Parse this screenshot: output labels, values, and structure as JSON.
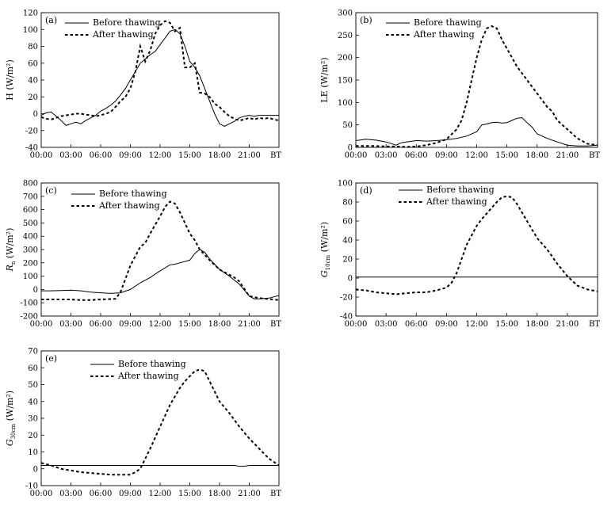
{
  "chart_data": [
    {
      "type": "line",
      "panel": "(a)",
      "ylabel": "H (W/m²)",
      "ylabel_main": "H",
      "ylabel_sub": "",
      "ylabel_unit": "(W/m²)",
      "ylim": [
        -40,
        120
      ],
      "yticks": [
        -40,
        -20,
        0,
        20,
        40,
        60,
        80,
        100,
        120
      ],
      "xlim": [
        0,
        24
      ],
      "xticks": [
        0,
        3,
        6,
        9,
        12,
        15,
        18,
        21
      ],
      "xtick_labels": [
        "00:00",
        "03:00",
        "06:00",
        "09:00",
        "12:00",
        "15:00",
        "18:00",
        "21:00"
      ],
      "x_unit_label": "BT",
      "legend": "top-left",
      "series": [
        {
          "name": "Before thawing",
          "style": "solid",
          "x": [
            0,
            0.5,
            1,
            1.5,
            2,
            2.5,
            3,
            3.5,
            4,
            4.5,
            5,
            5.5,
            6,
            6.5,
            7,
            7.5,
            8,
            8.5,
            9,
            9.5,
            10,
            10.5,
            11,
            11.5,
            12,
            12.5,
            13,
            13.5,
            14,
            14.5,
            15,
            15.5,
            16,
            16.5,
            17,
            17.5,
            18,
            18.5,
            19,
            19.5,
            20,
            20.5,
            21,
            21.5,
            22,
            22.5,
            23,
            23.5,
            24
          ],
          "values": [
            -2,
            1,
            2,
            -3,
            -8,
            -14,
            -12,
            -10,
            -12,
            -8,
            -5,
            -2,
            3,
            6,
            10,
            15,
            22,
            30,
            40,
            50,
            60,
            65,
            70,
            74,
            82,
            90,
            98,
            100,
            95,
            80,
            62,
            55,
            45,
            30,
            15,
            0,
            -12,
            -15,
            -12,
            -9,
            -5,
            -3,
            -2,
            -3,
            -2,
            -2,
            -2,
            -2,
            -2
          ]
        },
        {
          "name": "After thawing",
          "style": "dashed",
          "x": [
            0,
            0.5,
            1,
            1.5,
            2,
            2.5,
            3,
            3.5,
            4,
            4.5,
            5,
            5.5,
            6,
            6.5,
            7,
            7.5,
            8,
            8.5,
            9,
            9.5,
            10,
            10.5,
            11,
            11.5,
            12,
            12.5,
            13,
            13.5,
            14,
            14.5,
            15,
            15.5,
            16,
            16.5,
            17,
            17.5,
            18,
            18.5,
            19,
            19.5,
            20,
            20.5,
            21,
            21.5,
            22,
            22.5,
            23,
            23.5,
            24
          ],
          "values": [
            -4,
            -6,
            -7,
            -5,
            -3,
            -2,
            -1,
            0,
            0,
            -1,
            -2,
            -3,
            -2,
            0,
            2,
            8,
            15,
            20,
            30,
            50,
            80,
            62,
            75,
            95,
            105,
            110,
            108,
            98,
            102,
            55,
            55,
            60,
            25,
            24,
            20,
            12,
            8,
            2,
            -3,
            -6,
            -8,
            -7,
            -5,
            -7,
            -5,
            -6,
            -5,
            -7,
            -8
          ]
        }
      ]
    },
    {
      "type": "line",
      "panel": "(b)",
      "ylabel": "LE (W/m²)",
      "ylabel_main": "LE",
      "ylabel_sub": "",
      "ylabel_unit": "(W/m²)",
      "ylim": [
        0,
        300
      ],
      "yticks": [
        0,
        50,
        100,
        150,
        200,
        250,
        300
      ],
      "xlim": [
        0,
        24
      ],
      "xticks": [
        0,
        3,
        6,
        9,
        12,
        15,
        18,
        21
      ],
      "xtick_labels": [
        "00:00",
        "03:00",
        "06:00",
        "09:00",
        "12:00",
        "15:00",
        "18:00",
        "21:00"
      ],
      "x_unit_label": "BT",
      "legend": "top-left",
      "series": [
        {
          "name": "Before thawing",
          "style": "solid",
          "x": [
            0,
            1,
            2,
            3,
            4,
            4.5,
            5,
            6,
            7,
            8,
            9,
            10,
            11,
            12,
            12.5,
            13,
            13.5,
            14,
            14.5,
            15,
            15.5,
            16,
            16.5,
            17,
            17.5,
            18,
            18.5,
            19,
            20,
            21,
            22,
            23,
            24
          ],
          "values": [
            15,
            18,
            16,
            12,
            5,
            10,
            12,
            15,
            14,
            15,
            17,
            20,
            25,
            35,
            50,
            52,
            55,
            56,
            54,
            55,
            60,
            65,
            66,
            55,
            45,
            30,
            25,
            20,
            12,
            5,
            3,
            3,
            5
          ]
        },
        {
          "name": "After thawing",
          "style": "dashed",
          "x": [
            0,
            1,
            2,
            3,
            4,
            5,
            6,
            7,
            8,
            9,
            10,
            10.5,
            11,
            11.5,
            12,
            12.5,
            13,
            13.5,
            14,
            14.5,
            15,
            15.5,
            16,
            16.5,
            17,
            17.5,
            18,
            18.5,
            19,
            19.5,
            20,
            21,
            22,
            23,
            24
          ],
          "values": [
            3,
            3,
            3,
            2,
            2,
            1,
            2,
            5,
            10,
            18,
            40,
            60,
            100,
            150,
            200,
            240,
            265,
            270,
            265,
            240,
            220,
            200,
            180,
            165,
            150,
            135,
            120,
            105,
            90,
            80,
            60,
            40,
            20,
            8,
            5
          ]
        }
      ]
    },
    {
      "type": "line",
      "panel": "(c)",
      "ylabel": "Rn (W/m²)",
      "ylabel_main": "R",
      "ylabel_sub": "n",
      "ylabel_unit": "(W/m²)",
      "ylim": [
        -200,
        800
      ],
      "yticks": [
        -200,
        -100,
        0,
        100,
        200,
        300,
        400,
        500,
        600,
        700,
        800
      ],
      "xlim": [
        0,
        24
      ],
      "xticks": [
        0,
        3,
        6,
        9,
        12,
        15,
        18,
        21
      ],
      "xtick_labels": [
        "00:00",
        "03:00",
        "06:00",
        "09:00",
        "12:00",
        "15:00",
        "18:00",
        "21:00"
      ],
      "x_unit_label": "BT",
      "legend": "top-left",
      "series": [
        {
          "name": "Before thawing",
          "style": "solid",
          "x": [
            0,
            1,
            2,
            3,
            4,
            5,
            6,
            7,
            8,
            9,
            10,
            11,
            12,
            13,
            13.5,
            14,
            15,
            15.5,
            16,
            16.5,
            17,
            17.5,
            18,
            19,
            20,
            21,
            21.5,
            22,
            23,
            24
          ],
          "values": [
            -10,
            -10,
            -8,
            -5,
            -10,
            -20,
            -25,
            -30,
            -25,
            0,
            50,
            90,
            140,
            185,
            190,
            200,
            220,
            270,
            300,
            280,
            230,
            190,
            150,
            100,
            40,
            -50,
            -70,
            -70,
            -65,
            -45
          ]
        },
        {
          "name": "After thawing",
          "style": "dashed",
          "x": [
            0,
            1,
            2,
            3,
            4,
            5,
            6,
            7,
            7.5,
            8,
            8.5,
            9,
            10,
            10.5,
            11,
            12,
            12.5,
            13,
            13.5,
            14,
            14.5,
            15,
            15.5,
            16,
            17,
            18,
            19,
            19.5,
            20,
            21,
            22,
            23,
            24
          ],
          "values": [
            -75,
            -75,
            -75,
            -75,
            -80,
            -80,
            -75,
            -72,
            -70,
            -20,
            80,
            180,
            320,
            350,
            420,
            550,
            620,
            660,
            645,
            580,
            500,
            420,
            370,
            300,
            220,
            150,
            110,
            90,
            60,
            -50,
            -65,
            -72,
            -80
          ]
        }
      ]
    },
    {
      "type": "line",
      "panel": "(d)",
      "ylabel": "G10cm (W/m²)",
      "ylabel_main": "G",
      "ylabel_sub": "10cm",
      "ylabel_unit": "(W/m²)",
      "ylim": [
        -40,
        100
      ],
      "yticks": [
        -40,
        -20,
        0,
        20,
        40,
        60,
        80,
        100
      ],
      "xlim": [
        0,
        24
      ],
      "xticks": [
        0,
        3,
        6,
        9,
        12,
        15,
        18,
        21
      ],
      "xtick_labels": [
        "00:00",
        "03:00",
        "06:00",
        "09:00",
        "12:00",
        "15:00",
        "18:00",
        "21:00"
      ],
      "x_unit_label": "BT",
      "legend": "top-left",
      "series": [
        {
          "name": "Before thawing",
          "style": "solid",
          "x": [
            0,
            24
          ],
          "values": [
            1,
            1
          ]
        },
        {
          "name": "After thawing",
          "style": "dashed",
          "x": [
            0,
            1,
            2,
            3,
            4,
            5,
            6,
            7,
            8,
            9,
            9.5,
            10,
            11,
            12,
            12.5,
            13,
            14,
            14.5,
            15,
            15.5,
            16,
            17,
            18,
            19,
            20,
            21,
            22,
            23,
            24
          ],
          "values": [
            -12,
            -13,
            -15,
            -16,
            -17,
            -16,
            -15,
            -15,
            -13,
            -10,
            -5,
            5,
            35,
            55,
            62,
            68,
            80,
            85,
            86,
            85,
            78,
            60,
            42,
            30,
            15,
            2,
            -8,
            -12,
            -14
          ]
        }
      ]
    },
    {
      "type": "line",
      "panel": "(e)",
      "ylabel": "G30cm (W/m²)",
      "ylabel_main": "G",
      "ylabel_sub": "30cm",
      "ylabel_unit": "(W/m²)",
      "ylim": [
        -10,
        70
      ],
      "yticks": [
        -10,
        0,
        10,
        20,
        30,
        40,
        50,
        60,
        70
      ],
      "xlim": [
        0,
        24
      ],
      "xticks": [
        0,
        3,
        6,
        9,
        12,
        15,
        18,
        21
      ],
      "xtick_labels": [
        "00:00",
        "03:00",
        "06:00",
        "09:00",
        "12:00",
        "15:00",
        "18:00",
        "21:00"
      ],
      "x_unit_label": "BT",
      "legend": "top-center",
      "series": [
        {
          "name": "Before thawing",
          "style": "solid",
          "x": [
            0,
            10,
            19.5,
            20,
            20.5,
            21,
            24
          ],
          "values": [
            2,
            2,
            2,
            1.5,
            1.5,
            2,
            2
          ]
        },
        {
          "name": "After thawing",
          "style": "dashed",
          "x": [
            0,
            1,
            2,
            3,
            4,
            5,
            6,
            7,
            8,
            9,
            9.5,
            10,
            11,
            12,
            13,
            14,
            14.5,
            15,
            15.5,
            16,
            16.5,
            17,
            18,
            19,
            20,
            21,
            22,
            23,
            24
          ],
          "values": [
            3.5,
            2,
            0,
            -1,
            -2,
            -2.5,
            -3,
            -3.5,
            -3.5,
            -3.5,
            -2,
            0,
            12,
            25,
            38,
            48,
            52,
            55,
            58,
            59,
            58,
            52,
            40,
            33,
            25,
            18,
            12,
            6,
            2
          ]
        }
      ]
    }
  ]
}
